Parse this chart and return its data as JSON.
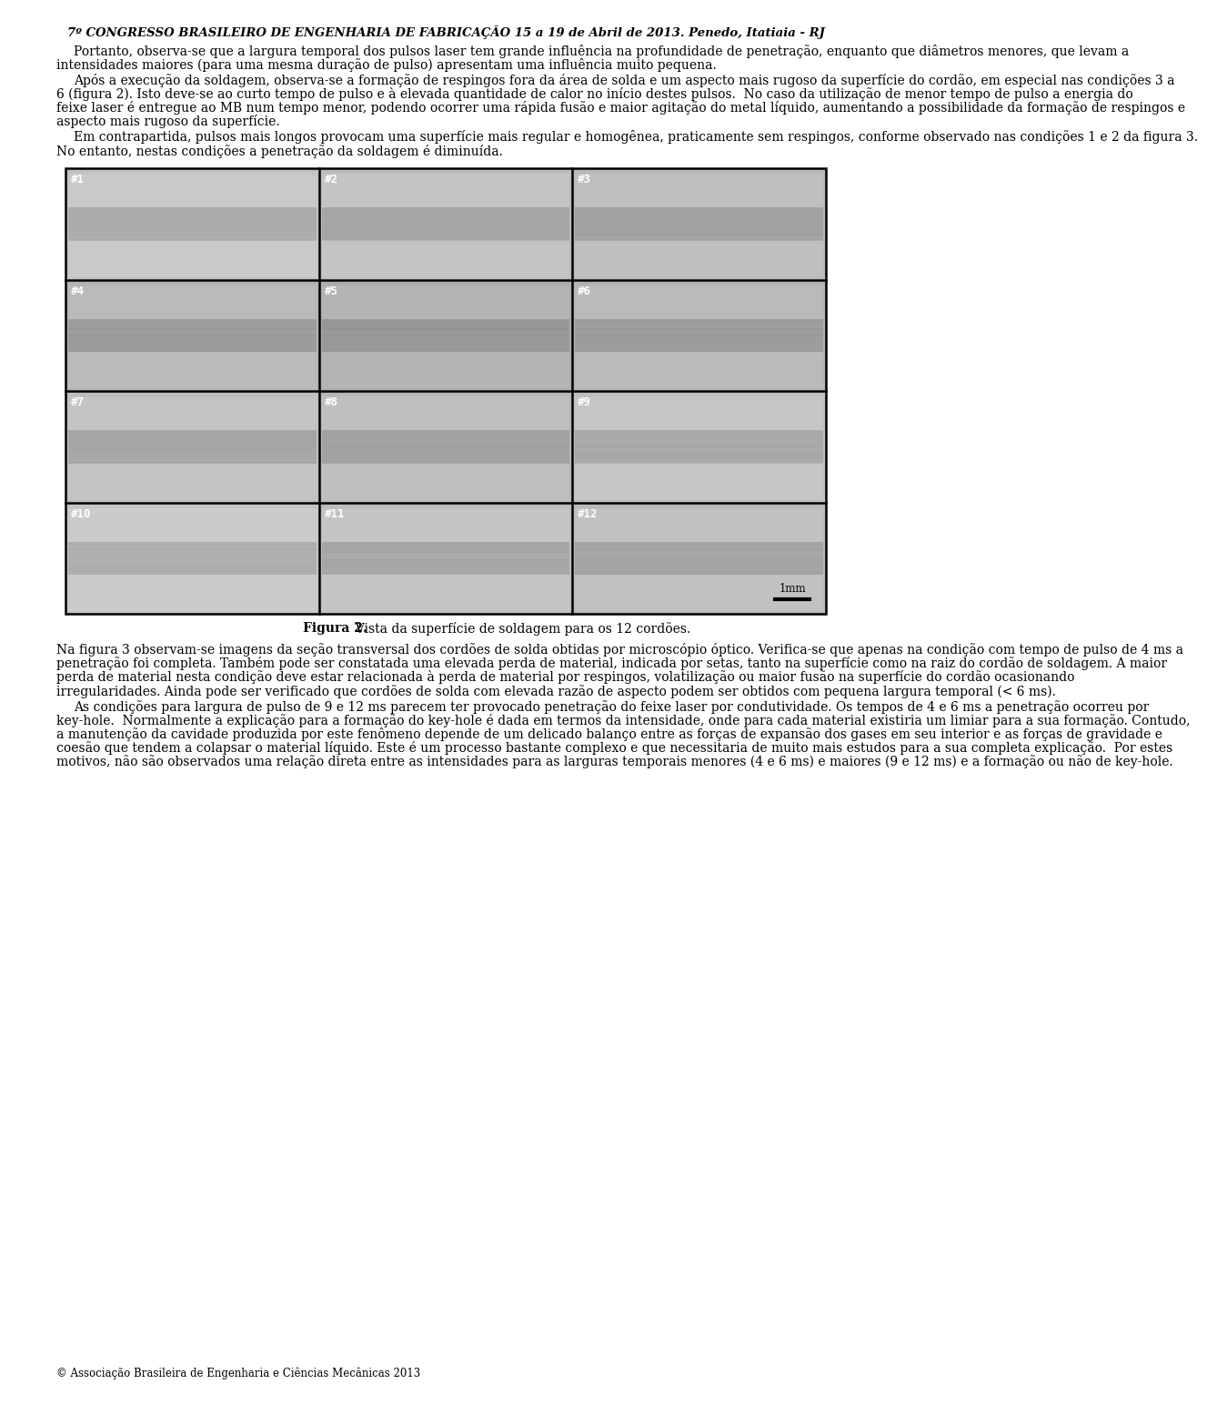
{
  "header": "7º CONGRESSO BRASILEIRO DE ENGENHARIA DE FABRICAÇÃO 15 a 19 de Abril de 2013. Penedo, Itatiaia - RJ",
  "header_fontsize": 9.5,
  "body_fontsize": 10,
  "paragraph1": "Portanto, observa-se que a largura temporal dos pulsos laser tem grande influência na profundidade de penetração, enquanto que diâmetros menores, que levam a intensidades maiores (para uma mesma duração de pulso) apresentam uma influência muito pequena.",
  "paragraph2": "Após a execução da soldagem, observa-se a formação de respingos fora da área de solda e um aspecto mais rugoso da superfície do cordão, em especial nas condições 3 a 6 (figura 2). Isto deve-se ao curto tempo de pulso e à elevada quantidade de calor no início destes pulsos.  No caso da utilização de menor tempo de pulso a energia do feixe laser é entregue ao MB num tempo menor, podendo ocorrer uma rápida fusão e maior agitação do metal líquido, aumentando a possibilidade da formação de respingos e aspecto mais rugoso da superfície.",
  "paragraph3": "Em contrapartida, pulsos mais longos provocam uma superfície mais regular e homogênea, praticamente sem respingos, conforme observado nas condições 1 e 2 da figura 3. No entanto, nestas condições a penetração da soldagem é diminuída.",
  "figure_caption_bold": "Figura 2.",
  "figure_caption_normal": "  Vista da superfície de soldagem para os 12 cordões.",
  "paragraph4": "Na figura 3 observam-se imagens da seção transversal dos cordões de solda obtidas por microscópio óptico. Verifica-se que apenas na condição com tempo de pulso de 4 ms a penetração foi completa. Também pode ser constatada uma elevada perda de material, indicada por setas, tanto na superfície como na raiz do cordão de soldagem. A maior perda de material nesta condição deve estar relacionada à perda de material por respingos, volatilização ou maior fusão na superfície do cordão ocasionando irregularidades. Ainda pode ser verificado que cordões de solda com elevada razão de aspecto podem ser obtidos com pequena largura temporal (< 6 ms).",
  "paragraph5": "As condições para largura de pulso de 9 e 12 ms parecem ter provocado penetração do feixe laser por condutividade. Os tempos de 4 e 6 ms a penetração ocorreu por key-hole.  Normalmente a explicação para a formação do key-hole é dada em termos da intensidade, onde para cada material existiria um limiar para a sua formação. Contudo, a manutenção da cavidade produzida por este fenômeno depende de um delicado balanço entre as forças de expansão dos gases em seu interior e as forças de gravidade e coesão que tendem a colapsar o material líquido. Este é um processo bastante complexo e que necessitaria de muito mais estudos para a sua completa explicação.  Por estes motivos, não são observados uma relação direta entre as intensidades para as larguras temporais menores (4 e 6 ms) e maiores (9 e 12 ms) e a formação ou não de key-hole.",
  "footer": "© Associação Brasileira de Engenharia e Ciências Mecânicas 2013",
  "bg_color": "#ffffff",
  "text_color": "#000000",
  "figure_labels": [
    "#1",
    "#2",
    "#3",
    "#4",
    "#5",
    "#6",
    "#7",
    "#8",
    "#9",
    "#10",
    "#11",
    "#12"
  ],
  "scale_bar_text": "1mm"
}
